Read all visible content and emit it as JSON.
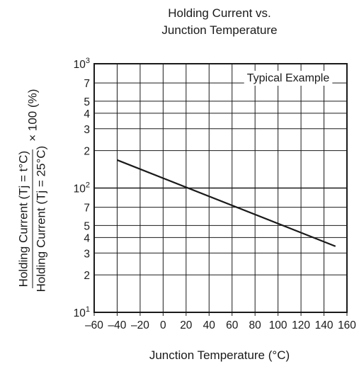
{
  "chart_data": {
    "type": "line",
    "title_line1": "Holding Current vs.",
    "title_line2": "Junction Temperature",
    "xlabel": "Junction Temperature  (°C)",
    "ylabel": {
      "numerator": "Holding Current  (Tj = t°C)",
      "denominator": "Holding Current  (Tj = 25°C)",
      "suffix": "× 100 (%)"
    },
    "annotation": "Typical Example",
    "x_ticks": [
      -60,
      -40,
      -20,
      0,
      20,
      40,
      60,
      80,
      100,
      120,
      140,
      160
    ],
    "x_tick_labels": [
      "–60",
      "–40",
      "–20",
      "0",
      "20",
      "40",
      "60",
      "80",
      "100",
      "120",
      "140",
      "160"
    ],
    "xlim": [
      -60,
      160
    ],
    "y_scale": "log",
    "ylim": [
      10,
      1000
    ],
    "y_ticks": [
      {
        "value": 1000,
        "base": "10",
        "exp": "3"
      },
      {
        "value": 700,
        "label": "7"
      },
      {
        "value": 500,
        "label": "5"
      },
      {
        "value": 400,
        "label": "4"
      },
      {
        "value": 300,
        "label": "3"
      },
      {
        "value": 200,
        "label": "2"
      },
      {
        "value": 100,
        "base": "10",
        "exp": "2"
      },
      {
        "value": 70,
        "label": "7"
      },
      {
        "value": 50,
        "label": "5"
      },
      {
        "value": 40,
        "label": "4"
      },
      {
        "value": 30,
        "label": "3"
      },
      {
        "value": 20,
        "label": "2"
      },
      {
        "value": 10,
        "base": "10",
        "exp": "1"
      }
    ],
    "grid": true,
    "series": [
      {
        "x": [
          -40,
          150
        ],
        "y": [
          168,
          34
        ]
      }
    ]
  }
}
